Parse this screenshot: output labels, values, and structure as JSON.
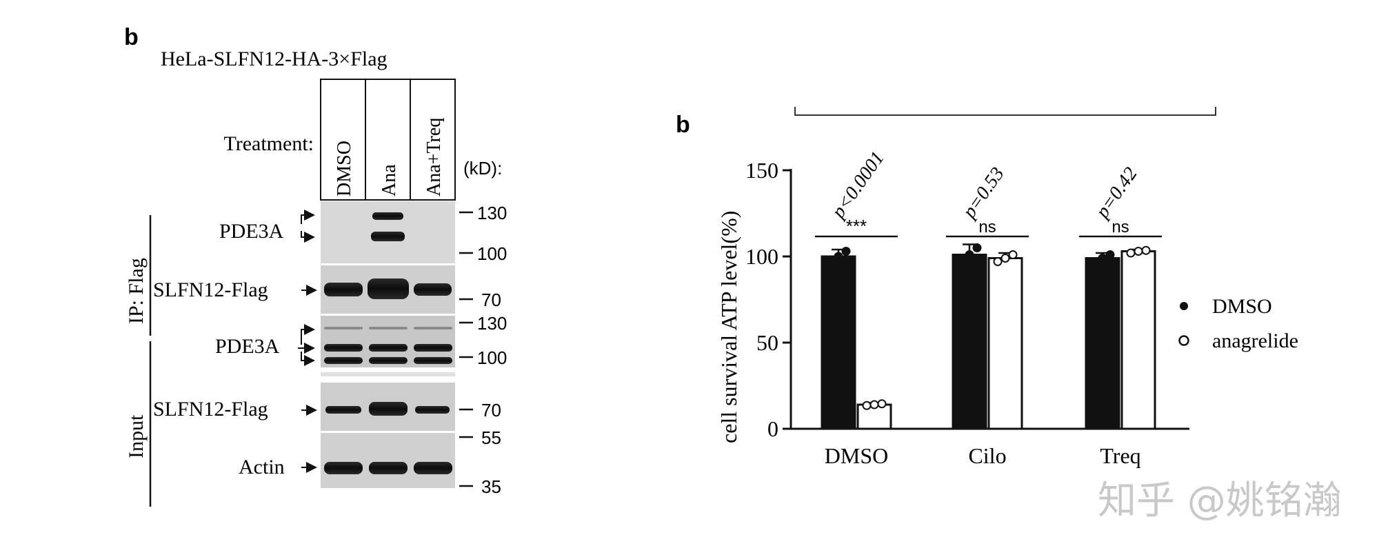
{
  "panel_left": {
    "letter": "b",
    "cell_line": "HeLa-SLFN12-HA-3×Flag",
    "treatment_label": "Treatment:",
    "lanes": [
      "DMSO",
      "Ana",
      "Ana+Treq"
    ],
    "kd_label": "(kD):",
    "group_ip": "IP: Flag",
    "group_input": "Input",
    "blots": [
      {
        "label": "PDE3A",
        "markers": [
          "130",
          "100"
        ]
      },
      {
        "label": "SLFN12-Flag",
        "markers": [
          "70"
        ]
      },
      {
        "label": "PDE3A",
        "markers": [
          "130",
          "100"
        ]
      },
      {
        "label": "SLFN12-Flag",
        "markers": [
          "70"
        ]
      },
      {
        "label": "Actin",
        "markers": [
          "55",
          "35"
        ]
      }
    ]
  },
  "chart_data": {
    "type": "bar",
    "letter": "b",
    "title": "",
    "xlabel": "",
    "ylabel": "cell survival ATP level(%)",
    "ylim": [
      0,
      150
    ],
    "yticks": [
      "0",
      "50",
      "100",
      "150"
    ],
    "categories": [
      "DMSO",
      "Cilo",
      "Treq"
    ],
    "series": [
      {
        "name": "DMSO",
        "values": [
          100,
          101,
          99
        ],
        "errors": [
          4,
          6,
          3
        ],
        "fill": "#111111",
        "points": [
          [
            97,
            100,
            103
          ],
          [
            98,
            101,
            105
          ],
          [
            97,
            99,
            101
          ]
        ]
      },
      {
        "name": "anagrelide",
        "values": [
          14,
          99,
          103
        ],
        "errors": [
          1,
          3,
          1
        ],
        "fill": "#ffffff",
        "points": [
          [
            13.5,
            14,
            14.5
          ],
          [
            97,
            99,
            101
          ],
          [
            102,
            103,
            103.5
          ]
        ]
      }
    ],
    "significance": [
      {
        "category": "DMSO",
        "stars": "***",
        "p": "p<0.0001"
      },
      {
        "category": "Cilo",
        "stars": "ns",
        "p": "p=0.53"
      },
      {
        "category": "Treq",
        "stars": "ns",
        "p": "p=0.42"
      }
    ],
    "legend_position": "right"
  },
  "watermark": "知乎 @姚铭瀚"
}
